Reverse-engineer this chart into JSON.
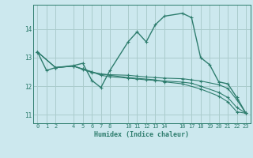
{
  "xlabel": "Humidex (Indice chaleur)",
  "bg_color": "#cce8ee",
  "grid_color": "#aacccc",
  "line_color": "#2e7d6e",
  "xlim": [
    -0.5,
    23.5
  ],
  "ylim": [
    10.7,
    14.85
  ],
  "xticks": [
    0,
    1,
    2,
    4,
    5,
    6,
    7,
    8,
    10,
    11,
    12,
    13,
    14,
    16,
    17,
    18,
    19,
    20,
    21,
    22,
    23
  ],
  "yticks": [
    11,
    12,
    13,
    14
  ],
  "lines": [
    {
      "x": [
        0,
        1,
        2,
        4,
        5,
        6,
        7,
        8,
        10,
        11,
        12,
        13,
        14,
        16,
        17,
        18,
        19,
        20,
        21,
        22,
        23
      ],
      "y": [
        13.2,
        12.55,
        12.65,
        12.72,
        12.8,
        12.2,
        11.95,
        12.55,
        13.55,
        13.9,
        13.55,
        14.15,
        14.45,
        14.55,
        14.4,
        13.0,
        12.75,
        12.15,
        12.08,
        11.6,
        11.05
      ]
    },
    {
      "x": [
        0,
        2,
        4,
        5,
        6,
        7,
        8,
        10,
        11,
        12,
        13,
        14,
        16,
        17,
        18,
        20,
        21,
        22,
        23
      ],
      "y": [
        13.2,
        12.65,
        12.7,
        12.6,
        12.5,
        12.42,
        12.4,
        12.38,
        12.35,
        12.32,
        12.3,
        12.28,
        12.26,
        12.22,
        12.18,
        12.05,
        11.92,
        11.52,
        11.05
      ]
    },
    {
      "x": [
        0,
        2,
        4,
        5,
        6,
        7,
        8,
        10,
        11,
        12,
        13,
        14,
        16,
        17,
        18,
        20,
        21,
        22,
        23
      ],
      "y": [
        13.2,
        12.65,
        12.7,
        12.6,
        12.5,
        12.38,
        12.33,
        12.28,
        12.25,
        12.22,
        12.2,
        12.18,
        12.14,
        12.1,
        12.0,
        11.78,
        11.6,
        11.25,
        11.05
      ]
    },
    {
      "x": [
        0,
        2,
        4,
        5,
        6,
        8,
        10,
        13,
        14,
        16,
        18,
        20,
        21,
        22,
        23
      ],
      "y": [
        13.2,
        12.65,
        12.7,
        12.58,
        12.48,
        12.38,
        12.3,
        12.22,
        12.15,
        12.08,
        11.9,
        11.65,
        11.45,
        11.1,
        11.05
      ]
    }
  ]
}
